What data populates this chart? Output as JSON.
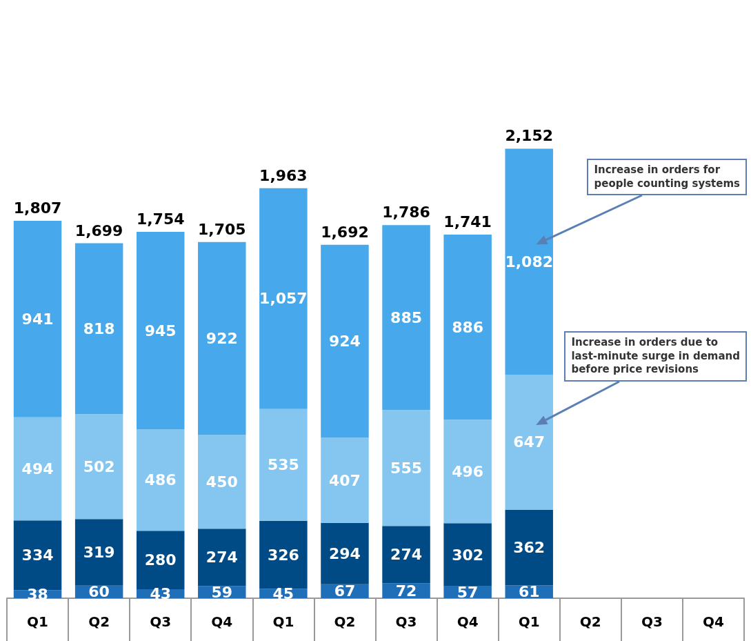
{
  "chart_data": {
    "type": "bar",
    "stacked": true,
    "grid": false,
    "categories": [
      "Q1",
      "Q2",
      "Q3",
      "Q4",
      "Q1",
      "Q2",
      "Q3",
      "Q4",
      "Q1",
      "Q2",
      "Q3",
      "Q4"
    ],
    "series": [
      {
        "color": "#1f6fb8",
        "values": [
          38,
          60,
          43,
          59,
          45,
          67,
          72,
          57,
          61,
          null,
          null,
          null
        ],
        "value_labels": [
          "38",
          "60",
          "43",
          "59",
          "45",
          "67",
          "72",
          "57",
          "61",
          null,
          null,
          null
        ]
      },
      {
        "color": "#004b85",
        "values": [
          334,
          319,
          280,
          274,
          326,
          294,
          274,
          302,
          362,
          null,
          null,
          null
        ],
        "value_labels": [
          "334",
          "319",
          "280",
          "274",
          "326",
          "294",
          "274",
          "302",
          "362",
          null,
          null,
          null
        ]
      },
      {
        "color": "#85c6f0",
        "values": [
          494,
          502,
          486,
          450,
          535,
          407,
          555,
          496,
          647,
          null,
          null,
          null
        ],
        "value_labels": [
          "494",
          "502",
          "486",
          "450",
          "535",
          "407",
          "555",
          "496",
          "647",
          null,
          null,
          null
        ]
      },
      {
        "color": "#47a9ec",
        "values": [
          941,
          818,
          945,
          922,
          1057,
          924,
          885,
          886,
          1082,
          null,
          null,
          null
        ],
        "value_labels": [
          "941",
          "818",
          "945",
          "922",
          "1,057",
          "924",
          "885",
          "886",
          "1,082",
          null,
          null,
          null
        ]
      }
    ],
    "totals": [
      "1,807",
      "1,699",
      "1,754",
      "1,705",
      "1,963",
      "1,692",
      "1,786",
      "1,741",
      "2,152",
      null,
      null,
      null
    ],
    "annotations": [
      "Increase in orders for\npeople counting systems",
      "Increase in orders due to\nlast-minute surge in demand\nbefore price revisions"
    ]
  }
}
